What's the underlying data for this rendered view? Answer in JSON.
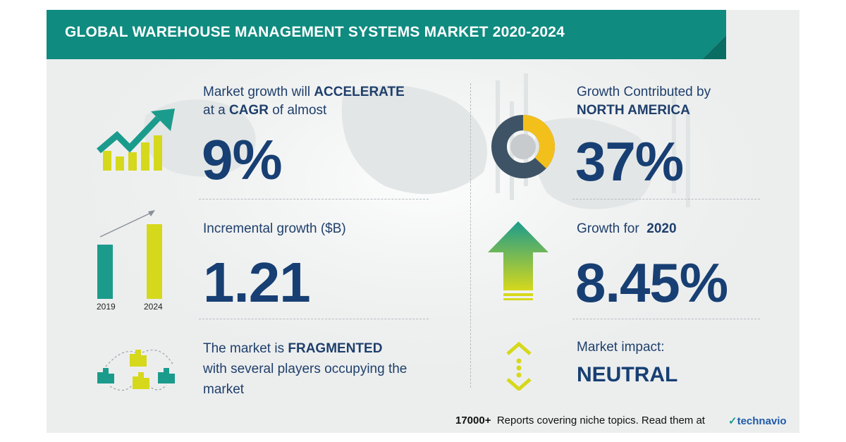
{
  "header": {
    "title": "GLOBAL WAREHOUSE MANAGEMENT SYSTEMS MARKET 2020-2024"
  },
  "left": {
    "cagr": {
      "line1_prefix": "Market growth will",
      "line1_bold": "ACCELERATE",
      "line2_prefix": "at a",
      "line2_bold": "CAGR",
      "line2_suffix": "of almost",
      "value": "9%"
    },
    "incremental": {
      "label": "Incremental growth ($B)",
      "value": "1.21",
      "bar_labels": [
        "2019",
        "2024"
      ]
    },
    "fragmented": {
      "line1_prefix": "The market is",
      "line1_bold": "FRAGMENTED",
      "line2": "with several players occupying the",
      "line3": "market"
    }
  },
  "right": {
    "region": {
      "line1": "Growth Contributed by",
      "line2": "NORTH AMERICA",
      "value": "37%",
      "share": 0.37
    },
    "yoy": {
      "label_prefix": "Growth for",
      "label_bold": "2020",
      "value": "8.45%"
    },
    "impact": {
      "label": "Market impact:",
      "value": "NEUTRAL"
    }
  },
  "footer": {
    "count": "17000+",
    "text": "Reports covering niche topics. Read them at",
    "brand": "technavio"
  },
  "colors": {
    "teal": "#1b9b8c",
    "yellow": "#d6d81c",
    "navy": "#173f73",
    "slate": "#3e5366",
    "donut_yellow": "#f3c01b"
  }
}
